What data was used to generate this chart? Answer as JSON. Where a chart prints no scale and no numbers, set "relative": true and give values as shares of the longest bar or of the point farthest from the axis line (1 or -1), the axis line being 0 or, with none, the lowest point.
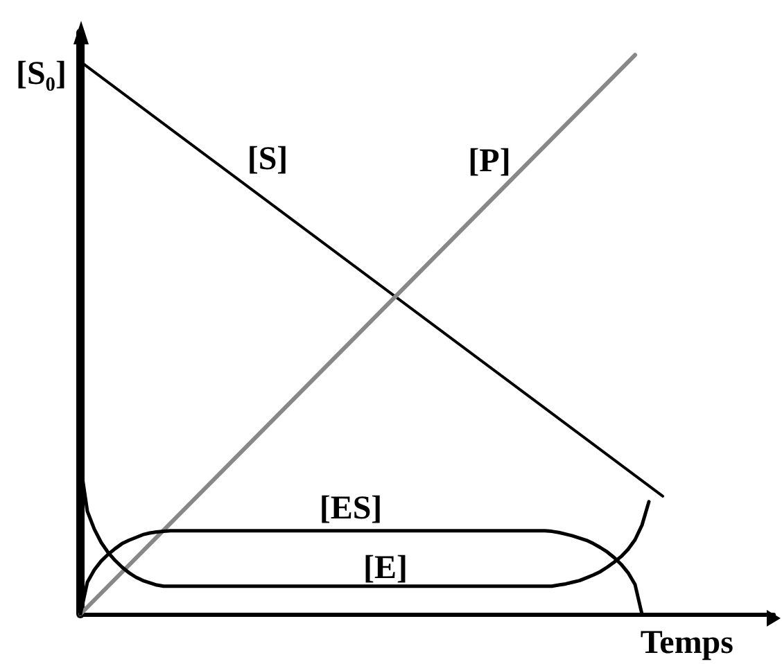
{
  "chart_data": {
    "type": "line",
    "relative": true,
    "xlabel": "Temps",
    "marker": "none",
    "line_style": "solid",
    "annotations": [
      "[S₀]"
    ],
    "categories": [
      null,
      null,
      null,
      null,
      null,
      null,
      null,
      null,
      null,
      null,
      null,
      null,
      null,
      null,
      null,
      null,
      null,
      null,
      null,
      null,
      null,
      null,
      null,
      null,
      null,
      null,
      null,
      null,
      null,
      null,
      null,
      null,
      null,
      null,
      null,
      null,
      null,
      null,
      null,
      null,
      null,
      null,
      null,
      null,
      null,
      null,
      null,
      null,
      null,
      null,
      null,
      null,
      null,
      null,
      null,
      null,
      null,
      null,
      null,
      null,
      null,
      null,
      null,
      null,
      null,
      null,
      null,
      null,
      null,
      null,
      null,
      null,
      null,
      null,
      null,
      null,
      null,
      null,
      null,
      null,
      null,
      null,
      null,
      null,
      null,
      null,
      null,
      null,
      null,
      null,
      null,
      null,
      null,
      null,
      null,
      null,
      null,
      null,
      null,
      null,
      null
    ],
    "series": [
      {
        "name": "[S]",
        "color": "#000000",
        "values": [
          0.988,
          null,
          null,
          null,
          null,
          null,
          null,
          null,
          null,
          null,
          null,
          null,
          null,
          null,
          null,
          null,
          null,
          null,
          null,
          null,
          null,
          null,
          null,
          null,
          null,
          null,
          null,
          null,
          null,
          null,
          null,
          null,
          null,
          null,
          null,
          null,
          null,
          null,
          null,
          null,
          null,
          null,
          null,
          null,
          null,
          null,
          null,
          null,
          null,
          null,
          null,
          null,
          null,
          null,
          null,
          null,
          null,
          null,
          null,
          null,
          null,
          null,
          null,
          null,
          null,
          null,
          null,
          null,
          null,
          null,
          null,
          null,
          null,
          null,
          null,
          null,
          null,
          null,
          null,
          null,
          null,
          null,
          null,
          null,
          0.211,
          null,
          null,
          null,
          null,
          null,
          null,
          null,
          null,
          null,
          null,
          null,
          null,
          null,
          null,
          null,
          null
        ]
      },
      {
        "name": "[P]",
        "color": "#888888",
        "values": [
          0,
          null,
          null,
          null,
          null,
          null,
          null,
          null,
          null,
          null,
          null,
          null,
          null,
          null,
          null,
          null,
          null,
          null,
          null,
          null,
          null,
          null,
          null,
          null,
          null,
          null,
          null,
          null,
          null,
          null,
          null,
          null,
          null,
          null,
          null,
          null,
          null,
          null,
          null,
          null,
          null,
          null,
          null,
          null,
          null,
          null,
          null,
          null,
          null,
          null,
          null,
          null,
          null,
          null,
          null,
          null,
          null,
          null,
          null,
          null,
          null,
          null,
          null,
          null,
          null,
          null,
          null,
          null,
          null,
          null,
          null,
          null,
          null,
          null,
          null,
          null,
          null,
          null,
          null,
          null,
          1,
          null,
          null,
          null,
          null,
          null,
          null,
          null,
          null,
          null,
          null,
          null,
          null,
          null,
          null,
          null,
          null,
          null,
          null,
          null,
          null
        ]
      },
      {
        "name": "[ES]",
        "color": "#000000",
        "values": [
          0,
          0.057,
          0.079,
          0.095,
          0.107,
          0.117,
          0.126,
          0.132,
          0.137,
          0.142,
          0.145,
          0.147,
          0.148,
          0.149,
          null,
          null,
          null,
          null,
          null,
          null,
          null,
          null,
          null,
          null,
          null,
          null,
          null,
          null,
          null,
          null,
          null,
          null,
          null,
          null,
          null,
          null,
          null,
          null,
          null,
          null,
          null,
          null,
          null,
          null,
          null,
          null,
          null,
          null,
          null,
          null,
          null,
          null,
          null,
          null,
          null,
          null,
          null,
          null,
          null,
          null,
          null,
          null,
          null,
          null,
          null,
          null,
          0.149,
          0.149,
          0.148,
          0.146,
          0.143,
          0.14,
          0.136,
          0.132,
          0.126,
          0.119,
          0.111,
          0.101,
          0.089,
          0.074,
          0.053,
          0,
          null,
          null,
          null,
          null,
          null,
          null,
          null,
          null,
          null,
          null,
          null,
          null,
          null,
          null,
          null,
          null,
          null,
          null,
          null
        ]
      },
      {
        "name": "[E]",
        "color": "#000000",
        "values": [
          0.268,
          0.184,
          0.152,
          0.128,
          0.11,
          0.096,
          0.084,
          0.074,
          0.066,
          0.06,
          0.056,
          0.052,
          0.05,
          0.05,
          null,
          null,
          null,
          null,
          null,
          null,
          null,
          null,
          null,
          null,
          null,
          null,
          null,
          null,
          null,
          null,
          null,
          null,
          null,
          null,
          null,
          null,
          null,
          null,
          null,
          null,
          null,
          null,
          null,
          null,
          null,
          null,
          null,
          null,
          null,
          null,
          null,
          null,
          null,
          null,
          null,
          null,
          null,
          null,
          null,
          null,
          null,
          null,
          null,
          null,
          null,
          null,
          0.05,
          0.05,
          0.05,
          0.052,
          0.054,
          0.057,
          0.06,
          0.065,
          0.07,
          0.076,
          0.084,
          0.093,
          0.103,
          0.116,
          0.133,
          0.159,
          0.201,
          null,
          null,
          null,
          null,
          null,
          null,
          null,
          null,
          null,
          null,
          null,
          null,
          null,
          null,
          null,
          null,
          null,
          null
        ]
      }
    ]
  }
}
